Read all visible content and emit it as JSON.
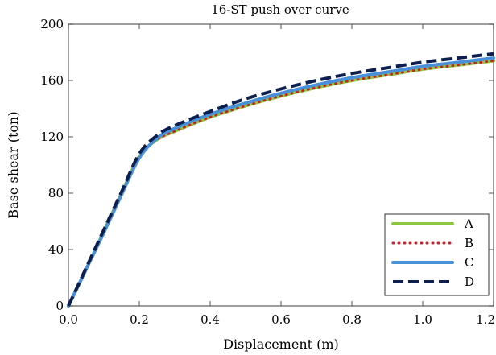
{
  "chart_data": {
    "type": "line",
    "title": "16-ST push over curve",
    "xlabel": "Displacement (m)",
    "ylabel": "Base shear (ton)",
    "xlim": [
      0,
      1.2
    ],
    "ylim": [
      0,
      200
    ],
    "xticks": [
      "0.0",
      "0.2",
      "0.4",
      "0.6",
      "0.8",
      "1.0",
      "1.2"
    ],
    "yticks": [
      "0",
      "40",
      "80",
      "120",
      "160",
      "200"
    ],
    "grid": false,
    "legend_position": "bottom-right",
    "series": [
      {
        "name": "A",
        "color": "#8dc63f",
        "style": "solid",
        "x": [
          0,
          0.05,
          0.1,
          0.15,
          0.2,
          0.25,
          0.3,
          0.4,
          0.5,
          0.6,
          0.7,
          0.8,
          0.9,
          1.0,
          1.1,
          1.2
        ],
        "y": [
          0,
          26,
          53,
          80,
          106,
          118,
          124,
          134,
          142,
          149,
          155,
          160,
          164,
          168,
          171,
          174
        ]
      },
      {
        "name": "B",
        "color": "#c0272d",
        "style": "dotted",
        "x": [
          0,
          0.05,
          0.1,
          0.15,
          0.2,
          0.25,
          0.3,
          0.4,
          0.5,
          0.6,
          0.7,
          0.8,
          0.9,
          1.0,
          1.1,
          1.2
        ],
        "y": [
          0,
          26,
          53,
          80,
          106,
          118,
          124,
          134,
          142,
          149,
          155,
          160,
          164,
          168,
          171,
          174
        ]
      },
      {
        "name": "C",
        "color": "#4a90d9",
        "style": "solid",
        "x": [
          0,
          0.05,
          0.1,
          0.15,
          0.2,
          0.25,
          0.3,
          0.4,
          0.5,
          0.6,
          0.7,
          0.8,
          0.9,
          1.0,
          1.1,
          1.2
        ],
        "y": [
          0,
          26,
          52,
          79,
          105,
          119,
          126,
          136,
          144,
          151,
          157,
          162,
          166,
          170,
          173,
          176
        ]
      },
      {
        "name": "D",
        "color": "#0d1f4f",
        "style": "dashed",
        "x": [
          0,
          0.05,
          0.1,
          0.15,
          0.2,
          0.25,
          0.3,
          0.4,
          0.5,
          0.6,
          0.7,
          0.8,
          0.9,
          1.0,
          1.1,
          1.2
        ],
        "y": [
          0,
          27,
          54,
          81,
          108,
          121,
          128,
          138,
          147,
          154,
          160,
          165,
          169,
          173,
          176,
          179
        ]
      }
    ]
  }
}
